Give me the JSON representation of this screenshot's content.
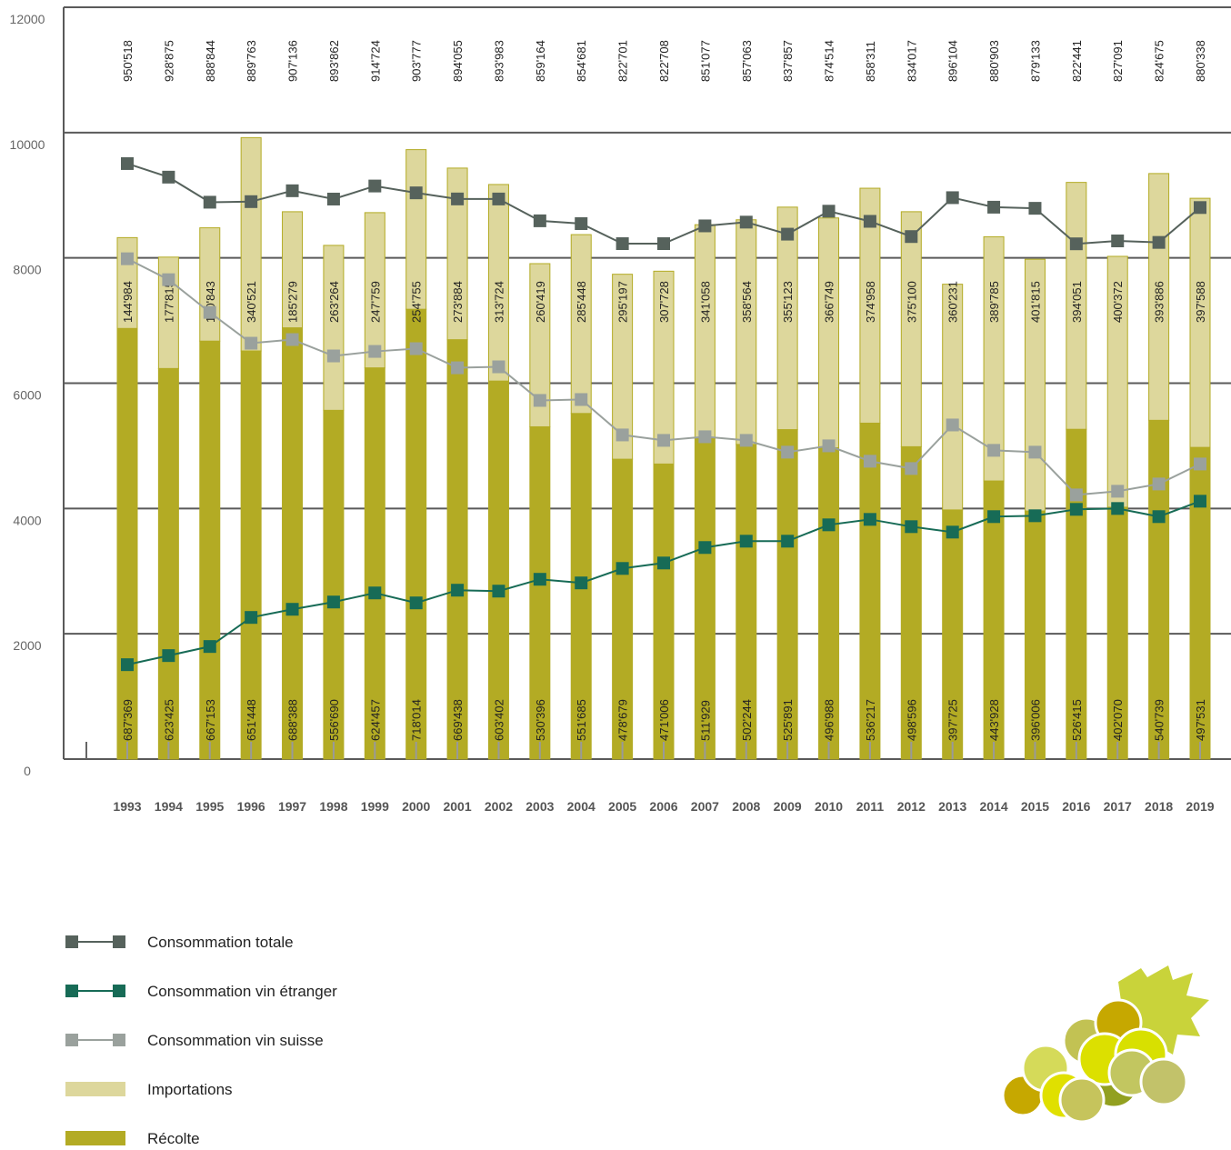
{
  "chart_data": {
    "type": "bar",
    "categories": [
      "1993",
      "1994",
      "1995",
      "1996",
      "1997",
      "1998",
      "1999",
      "2000",
      "2001",
      "2002",
      "2003",
      "2004",
      "2005",
      "2006",
      "2007",
      "2008",
      "2009",
      "2010",
      "2011",
      "2012",
      "2013",
      "2014",
      "2015",
      "2016",
      "2017",
      "2018",
      "2019"
    ],
    "ylim": [
      0,
      12000
    ],
    "yticks": [
      0,
      2000,
      4000,
      6000,
      8000,
      10000,
      12000
    ],
    "grid": true,
    "series": [
      {
        "name": "Consommation totale",
        "type": "line",
        "color": "#56625c",
        "values": [
          9505.18,
          9288.75,
          8888.44,
          8897.63,
          9071.36,
          8938.62,
          9147.24,
          9037.77,
          8940.55,
          8939.83,
          8591.64,
          8546.81,
          8227.01,
          8227.08,
          8510.77,
          8570.63,
          8378.57,
          8745.14,
          8583.11,
          8340.17,
          8961.04,
          8809.03,
          8791.33,
          8224.41,
          8270.91,
          8246.75,
          8803.38
        ],
        "value_labels": [
          "950'518",
          "928'875",
          "888'844",
          "889'763",
          "907'136",
          "893'862",
          "914'724",
          "903'777",
          "894'055",
          "893'983",
          "859'164",
          "854'681",
          "822'701",
          "822'708",
          "851'077",
          "857'063",
          "837'857",
          "874'514",
          "858'311",
          "834'017",
          "896'104",
          "880'903",
          "879'133",
          "822'441",
          "827'091",
          "824'675",
          "880'338"
        ]
      },
      {
        "name": "Consommation vin étranger",
        "type": "line",
        "color": "#176b56",
        "values": [
          1507,
          1652,
          1797,
          2261,
          2391,
          2507,
          2652,
          2493,
          2696,
          2681,
          2870,
          2812,
          3043,
          3130,
          3377,
          3478,
          3478,
          3739,
          3826,
          3710,
          3623,
          3870,
          3884,
          3986,
          4000,
          3870,
          4116
        ]
      },
      {
        "name": "Consommation vin suisse",
        "type": "line",
        "color": "#9aa19d",
        "values": [
          7986,
          7652,
          7130,
          6638,
          6696,
          6435,
          6507,
          6551,
          6246,
          6261,
          5725,
          5739,
          5174,
          5087,
          5145,
          5087,
          4899,
          5000,
          4754,
          4638,
          5333,
          4928,
          4899,
          4217,
          4275,
          4391,
          4710
        ]
      },
      {
        "name": "Importations",
        "type": "bar",
        "color": "#ddd79c",
        "values": [
          1449.84,
          1778.15,
          1808.43,
          3405.21,
          1852.79,
          2632.64,
          2477.59,
          2547.55,
          2738.84,
          3137.24,
          2604.19,
          2854.48,
          2951.97,
          3077.28,
          3410.58,
          3585.64,
          3551.23,
          3667.49,
          3749.58,
          3751.0,
          3602.31,
          3897.85,
          4018.15,
          3940.51,
          4003.72,
          3938.86,
          3975.88
        ],
        "value_labels": [
          "144'984",
          "177'815",
          "180'843",
          "340'521",
          "185'279",
          "263'264",
          "247'759",
          "254'755",
          "273'884",
          "313'724",
          "260'419",
          "285'448",
          "295'197",
          "307'728",
          "341'058",
          "358'564",
          "355'123",
          "366'749",
          "374'958",
          "375'100",
          "360'231",
          "389'785",
          "401'815",
          "394'051",
          "400'372",
          "393'886",
          "397'588"
        ]
      },
      {
        "name": "Récolte",
        "type": "bar",
        "color": "#b3ab24",
        "values": [
          6873.69,
          6234.25,
          6671.53,
          6514.48,
          6883.88,
          5566.9,
          6244.57,
          7180.14,
          6694.38,
          6034.02,
          5303.96,
          5516.85,
          4786.79,
          4710.06,
          5119.29,
          5022.44,
          5258.91,
          4969.88,
          5362.17,
          4985.96,
          3977.25,
          4439.28,
          3960.06,
          5264.15,
          4020.7,
          5407.39,
          4975.31
        ],
        "value_labels": [
          "687'369",
          "623'425",
          "667'153",
          "651'448",
          "688'388",
          "556'690",
          "624'457",
          "718'014",
          "669'438",
          "603'402",
          "530'396",
          "551'685",
          "478'679",
          "471'006",
          "511'929",
          "502'244",
          "525'891",
          "496'988",
          "536'217",
          "498'596",
          "397'725",
          "443'928",
          "396'006",
          "526'415",
          "402'070",
          "540'739",
          "497'531"
        ]
      }
    ]
  }
}
